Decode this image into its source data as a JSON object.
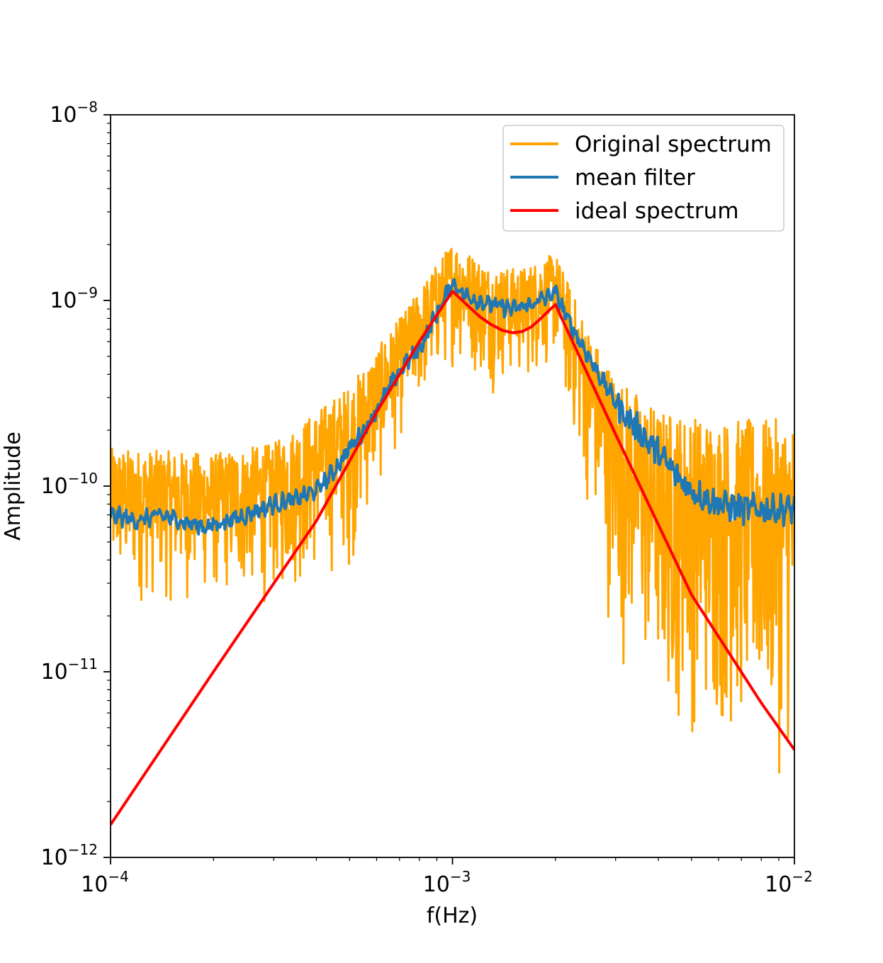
{
  "chart_data": {
    "type": "line",
    "xscale": "log",
    "yscale": "log",
    "xlabel": "f(Hz)",
    "ylabel": "Amplitude",
    "xlim": [
      0.0001,
      0.01
    ],
    "ylim": [
      1e-12,
      1e-08
    ],
    "x_ticks": [
      {
        "value": 0.0001,
        "base": "10",
        "exp": "−4"
      },
      {
        "value": 0.001,
        "base": "10",
        "exp": "−3"
      },
      {
        "value": 0.01,
        "base": "10",
        "exp": "−2"
      }
    ],
    "y_ticks": [
      {
        "value": 1e-08,
        "base": "10",
        "exp": "−8"
      },
      {
        "value": 1e-09,
        "base": "10",
        "exp": "−9"
      },
      {
        "value": 1e-10,
        "base": "10",
        "exp": "−10"
      },
      {
        "value": 1e-11,
        "base": "10",
        "exp": "−11"
      },
      {
        "value": 1e-12,
        "base": "10",
        "exp": "−12"
      }
    ],
    "legend_position": "top-right",
    "series": [
      {
        "name": "Original spectrum",
        "color": "#ffa500",
        "style": "noisy",
        "envelope_x": [
          0.0001,
          0.0002,
          0.0003,
          0.0005,
          0.0007,
          0.001,
          0.0013,
          0.0016,
          0.002,
          0.0025,
          0.003,
          0.004,
          0.006,
          0.008,
          0.01
        ],
        "envelope_upper": [
          1.6e-10,
          1.5e-10,
          1.7e-10,
          3.5e-10,
          8e-10,
          2.1e-09,
          1.5e-09,
          1.5e-09,
          1.8e-09,
          7e-10,
          4e-10,
          2.6e-10,
          2.3e-10,
          2.3e-10,
          2.3e-10
        ],
        "envelope_lower": [
          2e-11,
          2e-11,
          2e-11,
          3e-11,
          1.5e-10,
          4e-10,
          3e-10,
          3e-10,
          4e-10,
          6e-11,
          1e-11,
          4e-12,
          3e-12,
          2.5e-12,
          2e-12
        ]
      },
      {
        "name": "mean filter",
        "color": "#1f77b4",
        "style": "wiggle",
        "x": [
          0.0001,
          0.00012,
          0.00014,
          0.00016,
          0.00019,
          0.00022,
          0.00025,
          0.0003,
          0.00035,
          0.0004,
          0.00045,
          0.0005,
          0.00055,
          0.0006,
          0.0007,
          0.0008,
          0.0009,
          0.001,
          0.0011,
          0.0013,
          0.0015,
          0.0017,
          0.0019,
          0.002,
          0.0022,
          0.0025,
          0.0028,
          0.0031,
          0.0035,
          0.004,
          0.0045,
          0.005,
          0.006,
          0.007,
          0.008,
          0.009,
          0.01
        ],
        "y": [
          7e-11,
          6.5e-11,
          7e-11,
          6.5e-11,
          6e-11,
          6.5e-11,
          7e-11,
          8e-11,
          8.5e-11,
          9.5e-11,
          1.2e-10,
          1.6e-10,
          2e-10,
          2.6e-10,
          4.2e-10,
          5.5e-10,
          8.5e-10,
          1.25e-09,
          1.05e-09,
          9.5e-10,
          9e-10,
          9.5e-10,
          1.05e-09,
          1.1e-09,
          7.5e-10,
          5e-10,
          3.5e-10,
          2.6e-10,
          2e-10,
          1.5e-10,
          1.15e-10,
          9.5e-11,
          8e-11,
          7.5e-11,
          7.5e-11,
          7.5e-11,
          7.5e-11
        ]
      },
      {
        "name": "ideal spectrum",
        "color": "#ff0000",
        "style": "clean",
        "x": [
          0.0001,
          0.0002,
          0.0004,
          0.0006,
          0.0008,
          0.001,
          0.0011,
          0.0012,
          0.0013,
          0.0014,
          0.0015,
          0.0016,
          0.0017,
          0.0018,
          0.0019,
          0.002,
          0.003,
          0.005,
          0.008,
          0.01
        ],
        "y": [
          1.5e-12,
          1e-11,
          6.5e-11,
          2.5e-10,
          6e-10,
          1.12e-09,
          9.5e-10,
          8.2e-10,
          7.4e-10,
          6.9e-10,
          6.7e-10,
          6.8e-10,
          7.2e-10,
          7.9e-10,
          8.7e-10,
          9.5e-10,
          1.9e-10,
          2.6e-11,
          6.8e-12,
          3.8e-12
        ]
      }
    ]
  }
}
